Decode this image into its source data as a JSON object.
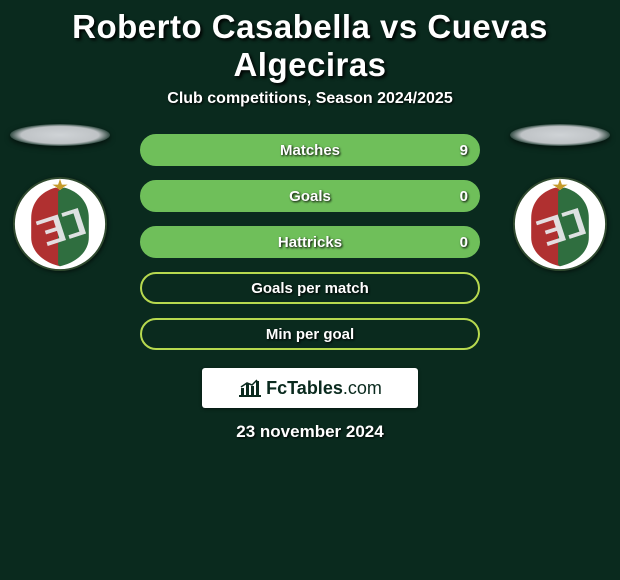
{
  "page_title": "Roberto Casabella vs Cuevas Algeciras",
  "subtitle": "Club competitions, Season 2024/2025",
  "date_text": "23 november 2024",
  "brand": {
    "text_bold": "FcTables",
    "text_thin": ".com"
  },
  "background_color": "#0a2a1e",
  "title_color": "#ffffff",
  "badge": {
    "circle_bg": "#ffffff",
    "outline": "#304a2f",
    "star": "#c59a2a",
    "stripe_red": "#b03030",
    "stripe_green": "#2f6e3f",
    "letter": "#e7e7ea"
  },
  "rows": [
    {
      "label": "Matches",
      "left": "",
      "right": "9",
      "border": "#6fbf5a",
      "fill": "#6fbf5a",
      "mode": "full"
    },
    {
      "label": "Goals",
      "left": "",
      "right": "0",
      "border": "#6fbf5a",
      "fill": "#6fbf5a",
      "mode": "full"
    },
    {
      "label": "Hattricks",
      "left": "",
      "right": "0",
      "border": "#6fbf5a",
      "fill": "#6fbf5a",
      "mode": "full"
    },
    {
      "label": "Goals per match",
      "left": "",
      "right": "",
      "border": "#b7d94f",
      "fill": "transparent",
      "mode": "outline"
    },
    {
      "label": "Min per goal",
      "left": "",
      "right": "",
      "border": "#b7d94f",
      "fill": "transparent",
      "mode": "outline"
    }
  ],
  "row_style": {
    "height": 32,
    "radius": 16,
    "border_width": 2,
    "label_fontsize": 15,
    "label_color": "#fefefe",
    "value_fontsize": 15,
    "value_color": "#fefefe"
  }
}
